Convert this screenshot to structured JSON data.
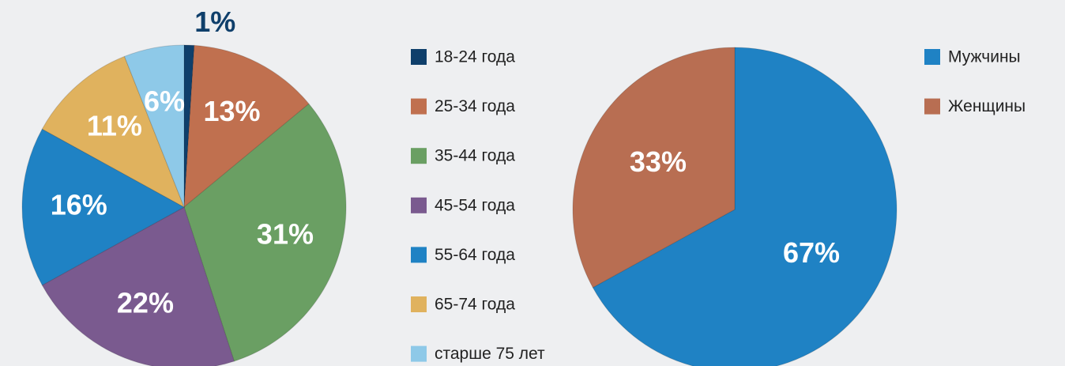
{
  "chart_data": [
    {
      "type": "pie",
      "categories": [
        "18-24 года",
        "25-34 года",
        "35-44 года",
        "45-54 года",
        "55-64 года",
        "65-74 года",
        "старше 75 лет"
      ],
      "values": [
        1,
        13,
        31,
        22,
        16,
        11,
        6
      ],
      "value_labels": [
        "1%",
        "13%",
        "31%",
        "22%",
        "16%",
        "11%",
        "6%"
      ],
      "colors": [
        "#0f3f6b",
        "#c0704f",
        "#6a9f63",
        "#7a5a8f",
        "#1f82c4",
        "#e0b25e",
        "#8ec9e8"
      ]
    },
    {
      "type": "pie",
      "categories": [
        "Мужчины",
        "Женщины"
      ],
      "values": [
        67,
        33
      ],
      "value_labels": [
        "67%",
        "33%"
      ],
      "colors": [
        "#1f82c4",
        "#b86e52"
      ]
    }
  ]
}
